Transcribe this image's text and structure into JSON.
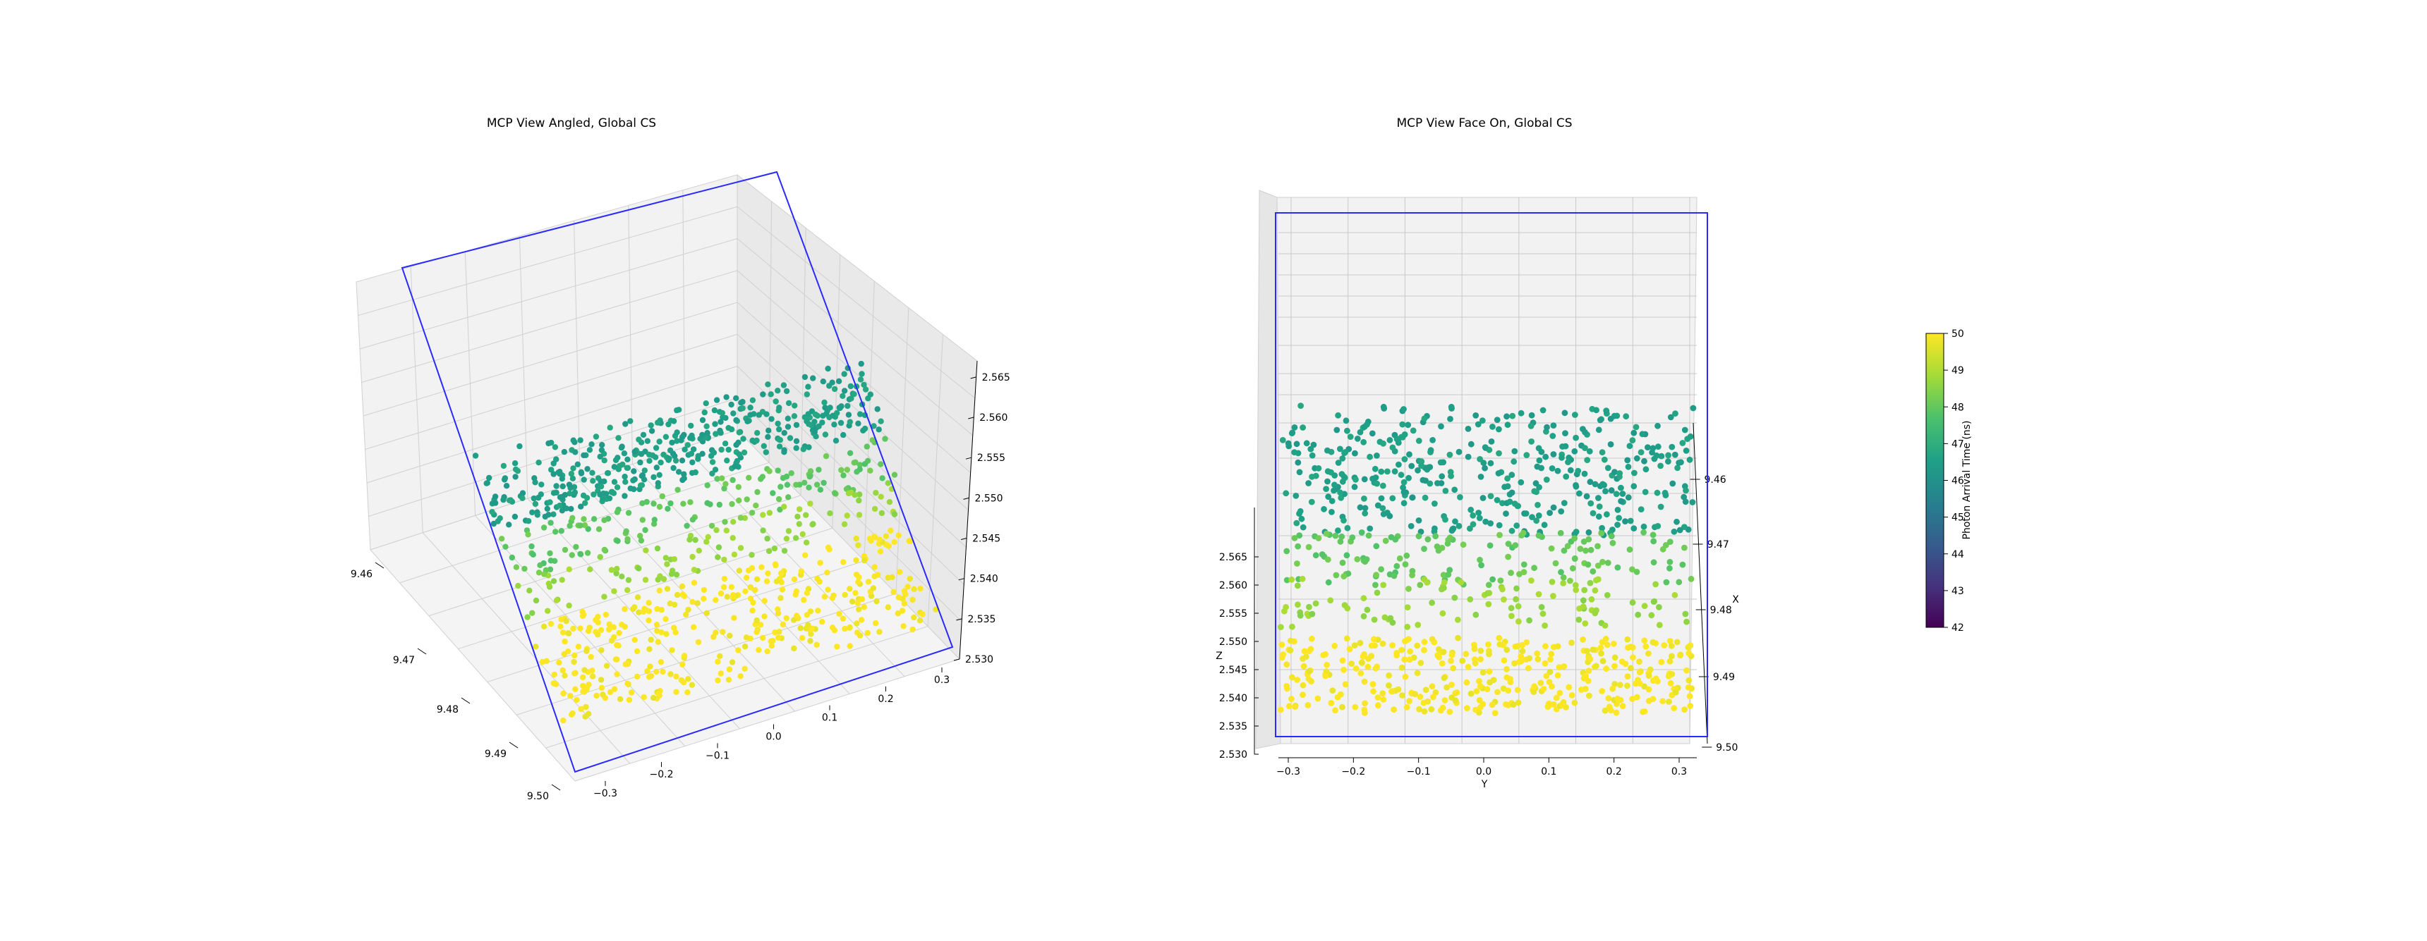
{
  "chart_data": [
    {
      "type": "scatter",
      "title": "MCP View Angled, Global CS",
      "projection": "3d",
      "xlabel": "",
      "ylabel": "",
      "zlabel": "",
      "x_ticks": [
        "9.46",
        "9.47",
        "9.48",
        "9.49",
        "9.50"
      ],
      "y_ticks": [
        "−0.3",
        "−0.2",
        "−0.1",
        "0.0",
        "0.1",
        "0.2",
        "0.3"
      ],
      "z_ticks": [
        "2.530",
        "2.535",
        "2.540",
        "2.545",
        "2.550",
        "2.555",
        "2.560",
        "2.565"
      ],
      "xlim": [
        9.455,
        9.5
      ],
      "ylim": [
        -0.33,
        0.33
      ],
      "zlim": [
        2.53,
        2.567
      ],
      "color_by": "Photon Arrival Time (ns)",
      "bands": [
        {
          "time_ns": 46.5,
          "z_range": [
            2.553,
            2.563
          ],
          "count": 520
        },
        {
          "time_ns": 48.0,
          "z_range": [
            2.545,
            2.553
          ],
          "count": 160
        },
        {
          "time_ns": 48.7,
          "z_range": [
            2.538,
            2.546
          ],
          "count": 110
        },
        {
          "time_ns": 50.0,
          "z_range": [
            2.531,
            2.54
          ],
          "count": 380
        }
      ],
      "plane_outline": "blue"
    },
    {
      "type": "scatter",
      "title": "MCP View Face On, Global CS",
      "projection": "3d",
      "xlabel": "X",
      "ylabel": "Y",
      "zlabel": "Z",
      "x_ticks": [
        "9.46",
        "9.47",
        "9.48",
        "9.49",
        "9.50"
      ],
      "y_ticks": [
        "−0.3",
        "−0.2",
        "−0.1",
        "0.0",
        "0.1",
        "0.2",
        "0.3"
      ],
      "z_ticks": [
        "2.530",
        "2.535",
        "2.540",
        "2.545",
        "2.550",
        "2.555",
        "2.560",
        "2.565"
      ],
      "xlim": [
        9.455,
        9.5
      ],
      "ylim": [
        -0.33,
        0.33
      ],
      "zlim": [
        2.53,
        2.567
      ],
      "color_by": "Photon Arrival Time (ns)",
      "bands": [
        {
          "time_ns": 46.5,
          "z_range": [
            2.553,
            2.563
          ],
          "count": 520
        },
        {
          "time_ns": 48.0,
          "z_range": [
            2.545,
            2.553
          ],
          "count": 160
        },
        {
          "time_ns": 48.7,
          "z_range": [
            2.538,
            2.546
          ],
          "count": 110
        },
        {
          "time_ns": 50.0,
          "z_range": [
            2.531,
            2.54
          ],
          "count": 380
        }
      ],
      "plane_outline": "blue"
    }
  ],
  "colorbar": {
    "label": "Photon Arrival Time (ns)",
    "range": [
      42,
      50
    ],
    "ticks": [
      "42",
      "43",
      "44",
      "45",
      "46",
      "47",
      "48",
      "49",
      "50"
    ]
  },
  "colors": {
    "plane": "#2a2aff",
    "pane": "#f2f2f2",
    "pane_dark": "#e6e6e6",
    "grid": "#c9c9c9"
  }
}
